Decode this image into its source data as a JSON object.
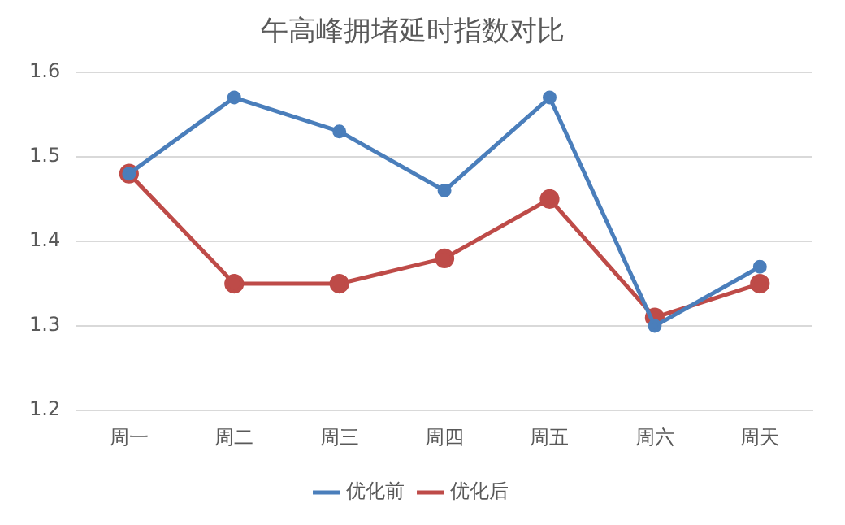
{
  "chart_data": {
    "type": "line",
    "title": "午高峰拥堵延时指数对比",
    "categories": [
      "周一",
      "周二",
      "周三",
      "周四",
      "周五",
      "周六",
      "周天"
    ],
    "series": [
      {
        "name": "优化前",
        "color": "#4a7ebb",
        "values": [
          1.48,
          1.57,
          1.53,
          1.46,
          1.57,
          1.3,
          1.37
        ]
      },
      {
        "name": "优化后",
        "color": "#be4b48",
        "values": [
          1.48,
          1.35,
          1.35,
          1.38,
          1.45,
          1.31,
          1.35
        ]
      }
    ],
    "ylim": [
      1.2,
      1.6
    ],
    "yticks": [
      1.2,
      1.3,
      1.4,
      1.5,
      1.6
    ],
    "grid": "y",
    "legend": "bottom",
    "marker": "circle",
    "line_style": "solid"
  }
}
